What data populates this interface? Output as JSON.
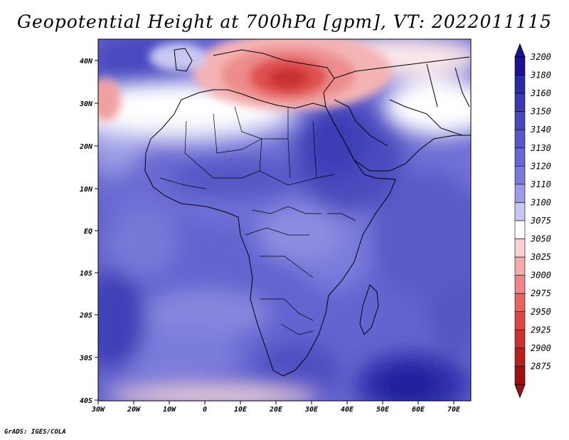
{
  "title": "Geopotential Height at 700hPa [gpm], VT: 2022011115",
  "footer": "GrADS: IGES/COLA",
  "map": {
    "lon_range": [
      -30,
      75
    ],
    "lat_range": [
      -40,
      45
    ],
    "x_ticks": [
      "30W",
      "20W",
      "10W",
      "0",
      "10E",
      "20E",
      "30E",
      "40E",
      "50E",
      "60E",
      "70E"
    ],
    "y_ticks": [
      "40N",
      "30N",
      "20N",
      "10N",
      "EQ",
      "10S",
      "20S",
      "30S",
      "40S"
    ],
    "features": [
      {
        "name": "Mediterranean high-gradient low (~2925 gpm)",
        "lon": 22,
        "lat": 36
      },
      {
        "name": "South Indian Ocean high (>3160 gpm)",
        "lon": 58,
        "lat": -35
      },
      {
        "name": "East Africa high (~3150 gpm)",
        "lon": 38,
        "lat": 12
      }
    ]
  },
  "colorbar": {
    "levels": [
      "3200",
      "3180",
      "3160",
      "3150",
      "3140",
      "3130",
      "3120",
      "3110",
      "3100",
      "3075",
      "3050",
      "3025",
      "3000",
      "2975",
      "2950",
      "2925",
      "2900",
      "2875"
    ],
    "colors": [
      "#1c1296",
      "#2a2aa6",
      "#3a3ab4",
      "#4848be",
      "#5858c8",
      "#6868d2",
      "#7a7adc",
      "#9a9ae6",
      "#c6c6f2",
      "#ffffff",
      "#fad0d0",
      "#f4aaaa",
      "#ee8686",
      "#e66464",
      "#dc4646",
      "#cc3030",
      "#b82020",
      "#a01010"
    ]
  }
}
